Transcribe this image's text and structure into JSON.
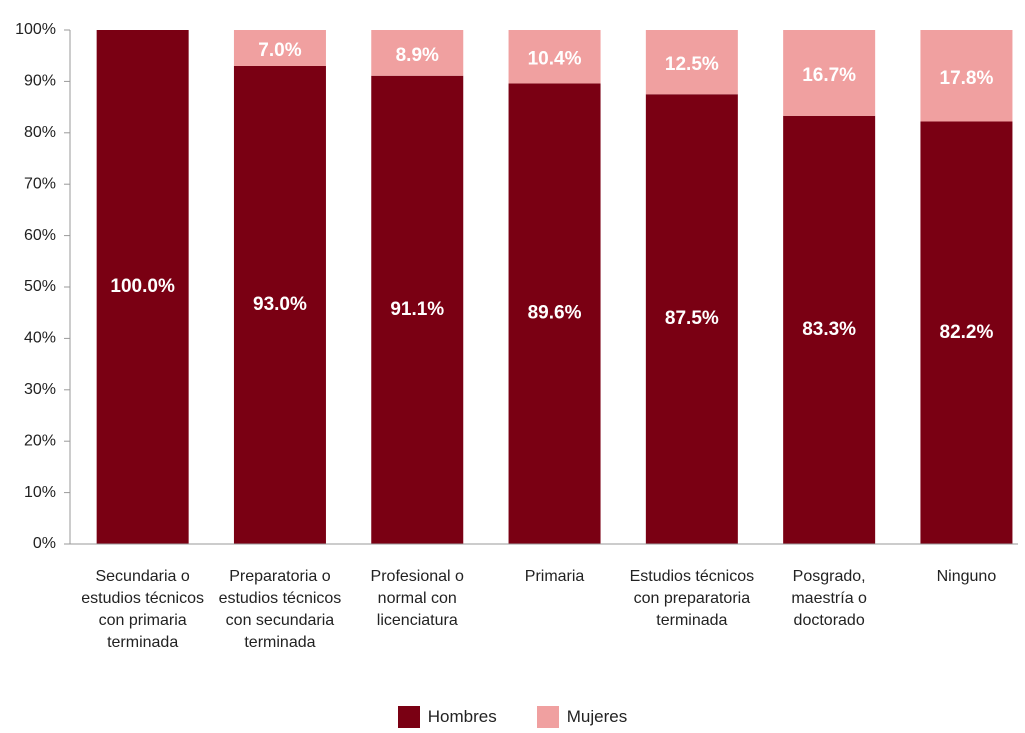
{
  "chart_data": {
    "type": "stacked_bar",
    "categories": [
      "Secundaria o estudios técnicos con primaria terminada",
      "Preparatoria o estudios técnicos con secundaria terminada",
      "Profesional o normal con licenciatura",
      "Primaria",
      "Estudios técnicos con preparatoria terminada",
      "Posgrado, maestría o doctorado",
      "Ninguno"
    ],
    "series": [
      {
        "name": "Hombres",
        "color": "#7a0013",
        "values": [
          100.0,
          93.0,
          91.1,
          89.6,
          87.5,
          83.3,
          82.2
        ],
        "value_labels": [
          "100.0%",
          "93.0%",
          "91.1%",
          "89.6%",
          "87.5%",
          "83.3%",
          "82.2%"
        ]
      },
      {
        "name": "Mujeres",
        "color": "#f0a0a0",
        "values": [
          0,
          7.0,
          8.9,
          10.4,
          12.5,
          16.7,
          17.8
        ],
        "value_labels": [
          null,
          "7.0%",
          "8.9%",
          "10.4%",
          "12.5%",
          "16.7%",
          "17.8%"
        ]
      }
    ],
    "ylim": [
      0,
      100
    ],
    "yticks": [
      {
        "value": 0,
        "label": "0%"
      },
      {
        "value": 10,
        "label": "10%"
      },
      {
        "value": 20,
        "label": "20%"
      },
      {
        "value": 30,
        "label": "30%"
      },
      {
        "value": 40,
        "label": "40%"
      },
      {
        "value": 50,
        "label": "50%"
      },
      {
        "value": 60,
        "label": "60%"
      },
      {
        "value": 70,
        "label": "70%"
      },
      {
        "value": 80,
        "label": "80%"
      },
      {
        "value": 90,
        "label": "90%"
      },
      {
        "value": 100,
        "label": "100%"
      }
    ],
    "grid": false,
    "legend": "bottom"
  }
}
